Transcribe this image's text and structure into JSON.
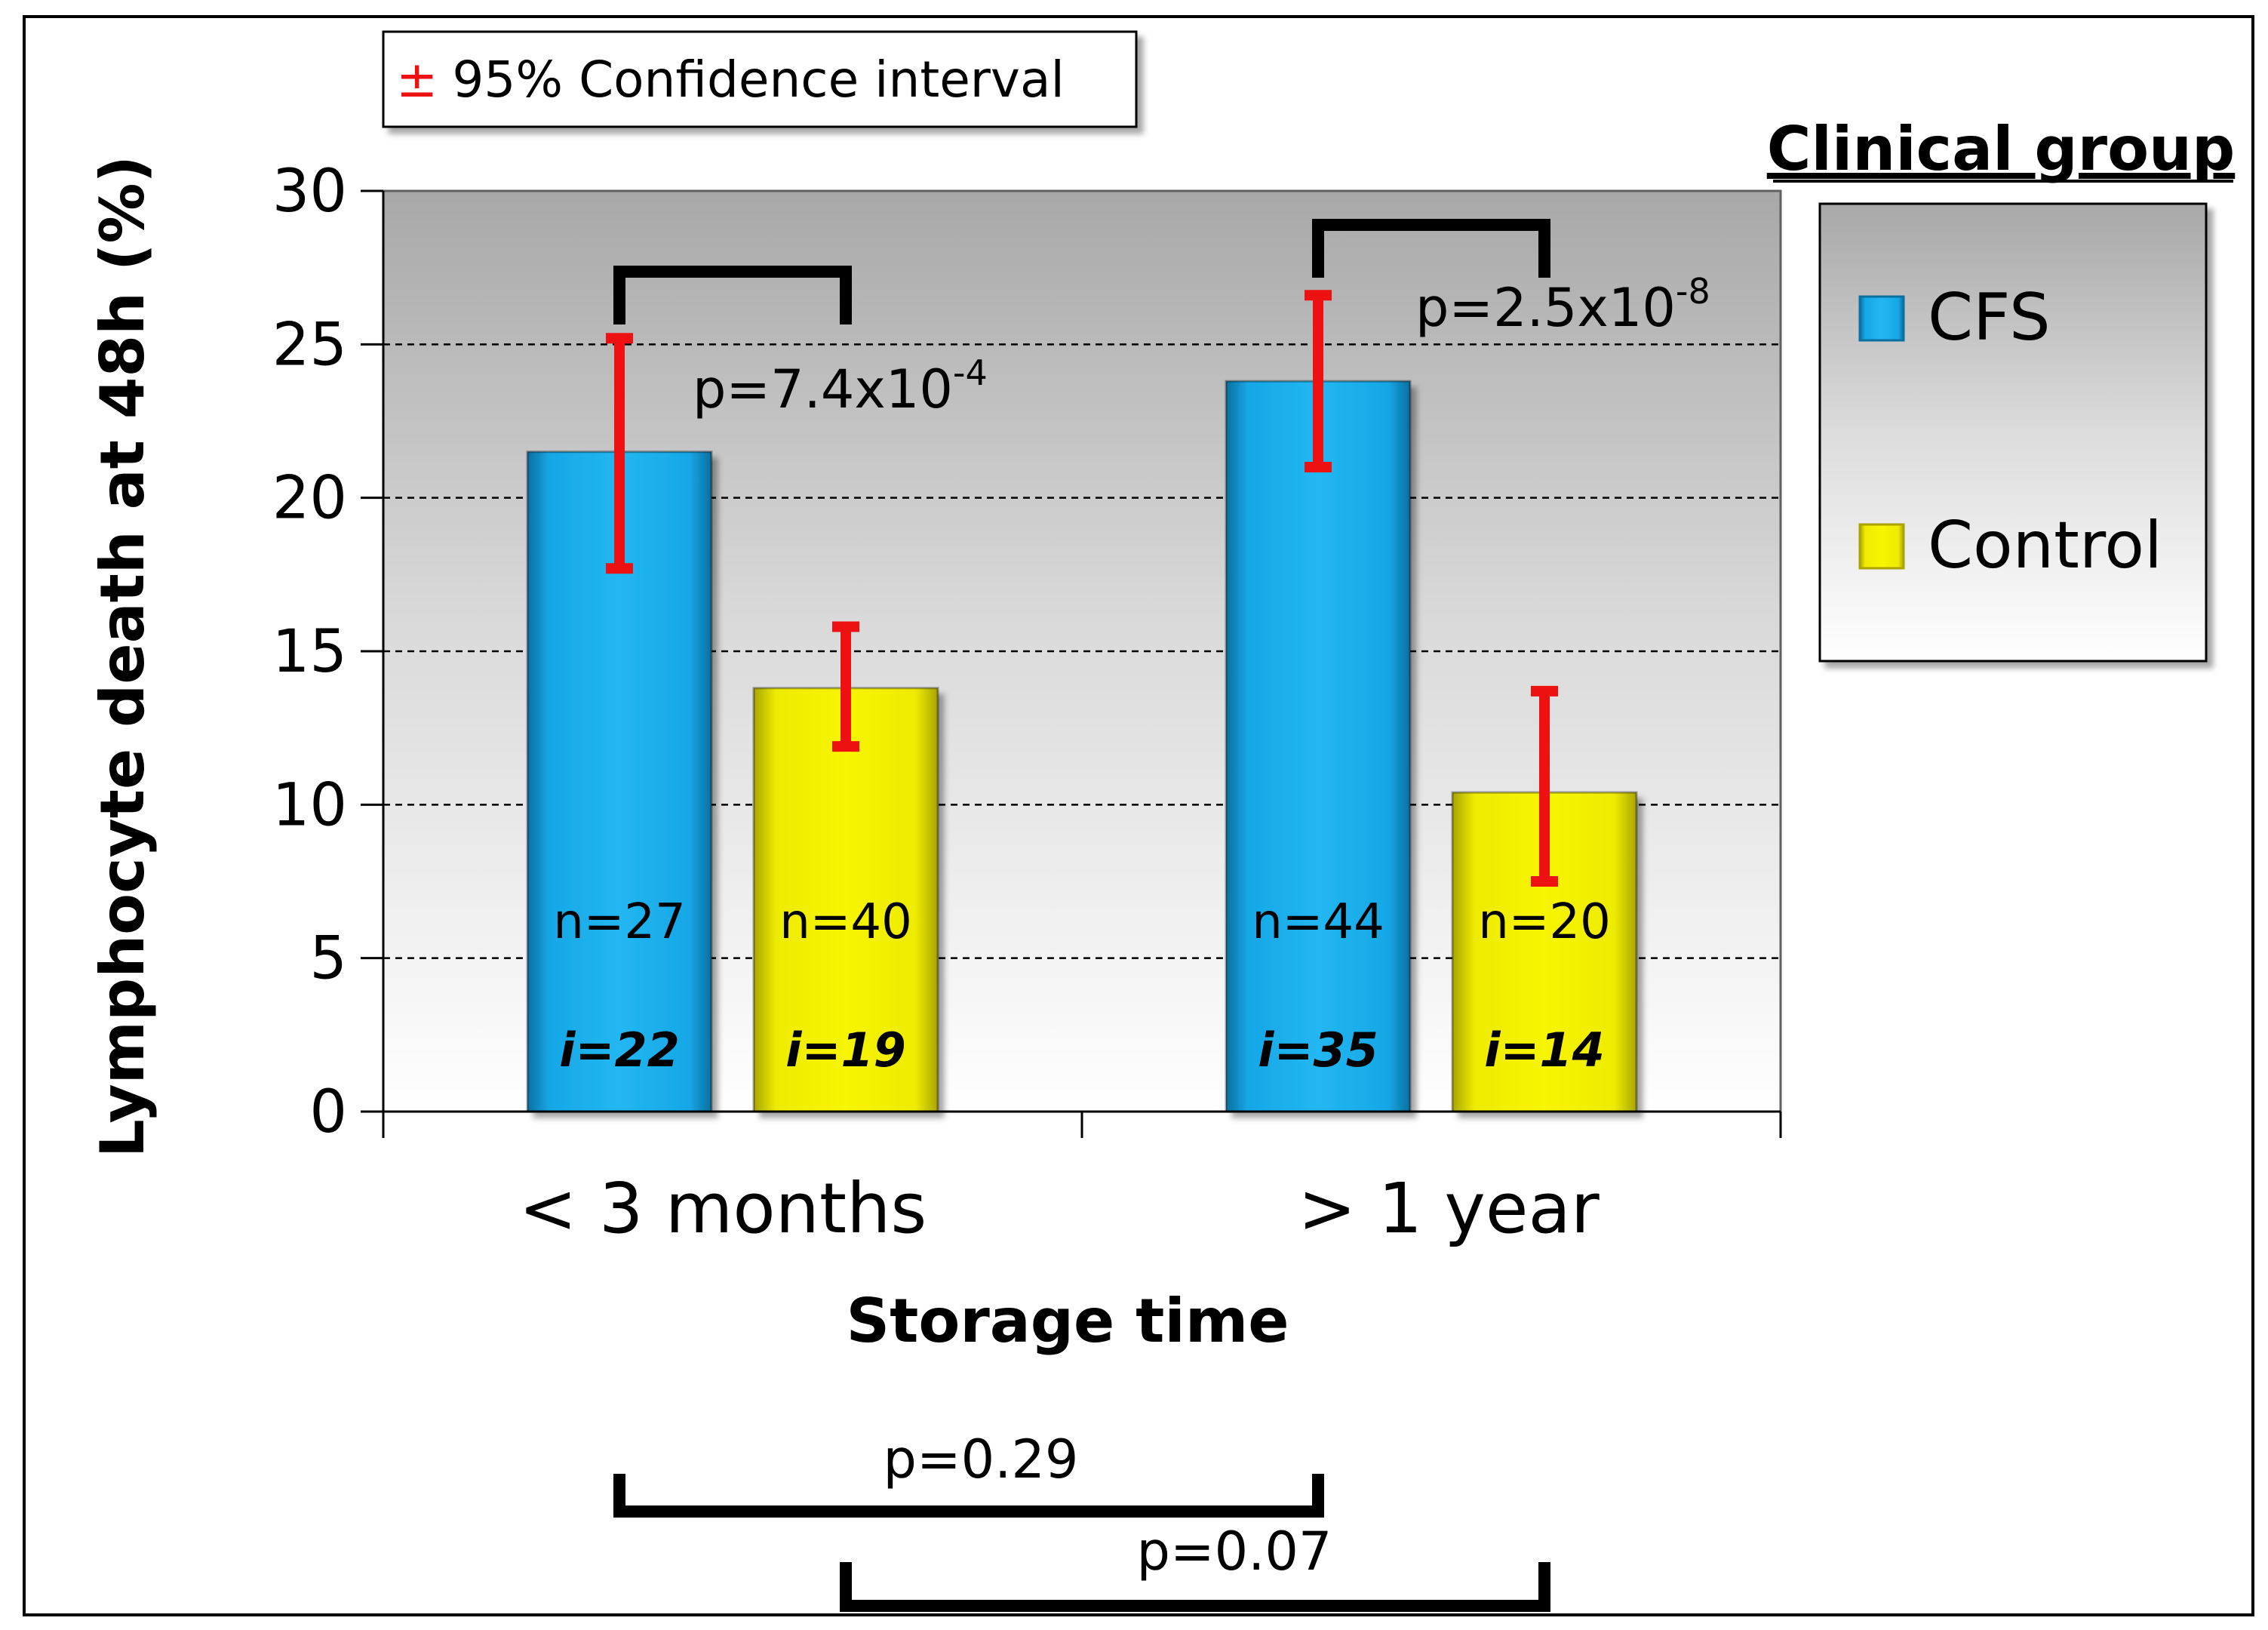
{
  "chart_data": {
    "type": "bar",
    "title": "",
    "xlabel": "Storage time",
    "ylabel": "Lymphocyte death at 48h (%)",
    "ylim": [
      0,
      30
    ],
    "yticks": [
      0,
      5,
      10,
      15,
      20,
      25,
      30
    ],
    "grid": true,
    "categories": [
      "< 3 months",
      "> 1 year"
    ],
    "series": [
      {
        "name": "CFS",
        "color": "#16a7e6",
        "values": [
          21.5,
          23.8
        ],
        "ci_low": [
          17.7,
          21.0
        ],
        "ci_high": [
          25.2,
          26.6
        ],
        "n": [
          "n=27",
          "n=44"
        ],
        "i": [
          "i=22",
          "i=35"
        ]
      },
      {
        "name": "Control",
        "color": "#f2f000",
        "values": [
          13.8,
          10.4
        ],
        "ci_low": [
          11.9,
          7.5
        ],
        "ci_high": [
          15.8,
          13.7
        ],
        "n": [
          "n=40",
          "n=20"
        ],
        "i": [
          "i=19",
          "i=14"
        ]
      }
    ],
    "ci_note": {
      "symbol": "±",
      "text": "95% Confidence interval"
    },
    "legend": {
      "title": "Clinical group",
      "position": "right"
    },
    "within_group_tests": [
      {
        "category": "< 3 months",
        "p_base": "p=7.4x10",
        "p_exp": "-4"
      },
      {
        "category": "> 1 year",
        "p_base": "p=2.5x10",
        "p_exp": "-8"
      }
    ],
    "between_storage_tests": [
      {
        "series": "CFS",
        "label": "p=0.29"
      },
      {
        "series": "Control",
        "label": "p=0.07"
      }
    ]
  }
}
